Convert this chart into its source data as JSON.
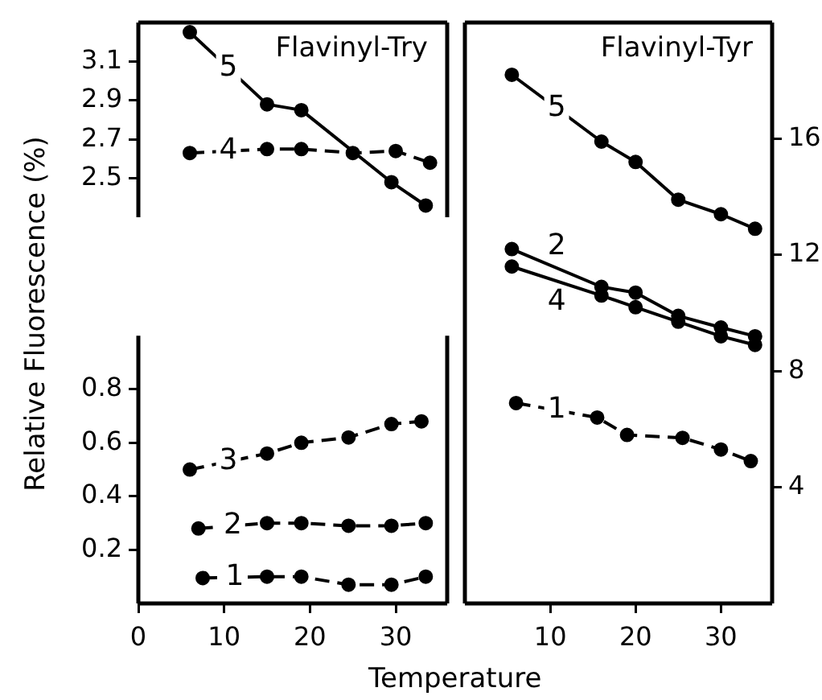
{
  "chart_data": [
    {
      "type": "line",
      "title": "Flavinyl-Try",
      "xlim": [
        0,
        36
      ],
      "ylim": [
        2.3,
        3.3
      ],
      "yticks": [
        2.5,
        2.7,
        2.9,
        3.1
      ],
      "tick_labels": "y",
      "marker": "circle",
      "grid": false,
      "legend": false,
      "series": [
        {
          "name": "5",
          "color": "#000000",
          "line_style": "solid",
          "x": [
            6,
            15,
            19,
            29.5,
            33.5
          ],
          "values": [
            3.25,
            2.88,
            2.85,
            2.48,
            2.36
          ]
        },
        {
          "name": "4",
          "color": "#000000",
          "line_style": "dashed",
          "x": [
            6,
            15,
            19,
            25,
            30,
            34
          ],
          "values": [
            2.63,
            2.65,
            2.65,
            2.63,
            2.64,
            2.58
          ]
        }
      ]
    },
    {
      "type": "line",
      "xlabel": "Temperature",
      "ylabel": "Relative Fluorescence (%)",
      "xlim": [
        0,
        36
      ],
      "xticks": [
        0,
        10,
        20,
        30
      ],
      "ylim": [
        0,
        1
      ],
      "yticks": [
        0.2,
        0.4,
        0.6,
        0.8
      ],
      "marker": "circle",
      "grid": false,
      "legend": false,
      "series": [
        {
          "name": "3",
          "color": "#000000",
          "line_style": "dashed",
          "x": [
            6,
            15,
            19,
            24.5,
            29.5,
            33
          ],
          "values": [
            0.5,
            0.56,
            0.6,
            0.62,
            0.67,
            0.68
          ]
        },
        {
          "name": "2",
          "color": "#000000",
          "line_style": "dashed",
          "x": [
            7,
            15,
            19,
            24.5,
            29.5,
            33.5
          ],
          "values": [
            0.28,
            0.3,
            0.3,
            0.29,
            0.29,
            0.3
          ]
        },
        {
          "name": "1",
          "color": "#000000",
          "line_style": "dashed",
          "x": [
            7.5,
            15,
            19,
            24.5,
            29.5,
            33.5
          ],
          "values": [
            0.095,
            0.1,
            0.1,
            0.07,
            0.07,
            0.1
          ]
        }
      ]
    },
    {
      "type": "line",
      "title": "Flavinyl-Tyr",
      "xlim": [
        0,
        36
      ],
      "xticks": [
        10,
        20,
        30
      ],
      "y2lim": [
        0,
        20
      ],
      "y2ticks": [
        4,
        8,
        12,
        16
      ],
      "marker": "circle",
      "grid": false,
      "legend": false,
      "series": [
        {
          "name": "5",
          "color": "#000000",
          "line_style": "solid",
          "axis": "y2",
          "x": [
            5.5,
            16,
            20,
            25,
            30,
            34
          ],
          "values": [
            18.2,
            15.9,
            15.2,
            13.9,
            13.4,
            12.9
          ]
        },
        {
          "name": "2",
          "color": "#000000",
          "line_style": "solid",
          "axis": "y2",
          "x": [
            5.5,
            16,
            20,
            25,
            30,
            34
          ],
          "values": [
            12.2,
            10.9,
            10.7,
            9.9,
            9.5,
            9.2
          ]
        },
        {
          "name": "4",
          "color": "#000000",
          "line_style": "solid",
          "axis": "y2",
          "x": [
            5.5,
            16,
            20,
            25,
            30,
            34
          ],
          "values": [
            11.6,
            10.6,
            10.2,
            9.7,
            9.2,
            8.9
          ]
        },
        {
          "name": "1",
          "color": "#000000",
          "line_style": "dashed",
          "axis": "y2",
          "x": [
            6,
            15.5,
            19,
            25.5,
            30,
            33.5
          ],
          "values": [
            6.9,
            6.4,
            5.8,
            5.7,
            5.3,
            4.9
          ]
        }
      ]
    }
  ]
}
